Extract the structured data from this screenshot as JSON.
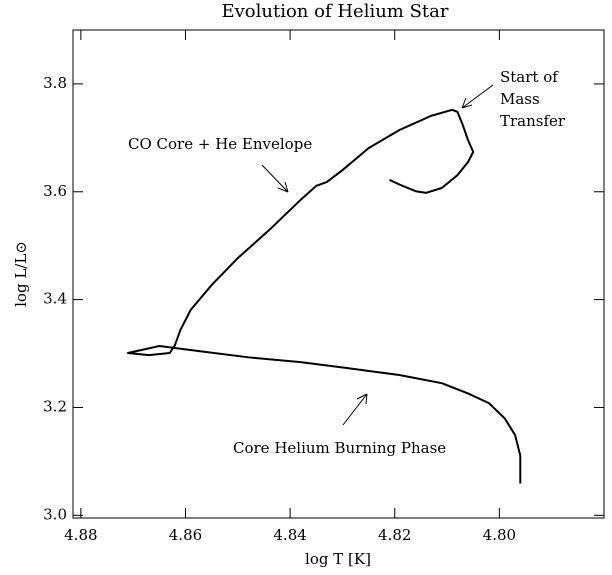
{
  "chart_data": {
    "type": "line",
    "title": "Evolution of Helium Star",
    "x_label": "log T [K]",
    "y_label": "log L/L⊙",
    "annotations": [
      "Start of",
      "Mass",
      "Transfer",
      "CO Core + He Envelope",
      "Core Helium Burning Phase"
    ],
    "x": [
      4.796,
      4.796,
      4.797,
      4.799,
      4.802,
      4.806,
      4.811,
      4.819,
      4.829,
      4.838,
      4.848,
      4.857,
      4.865,
      4.871,
      4.867,
      4.863,
      4.862,
      4.861,
      4.859,
      4.855,
      4.85,
      4.844,
      4.838,
      4.835,
      4.833,
      4.83,
      4.825,
      4.819,
      4.813,
      4.809,
      4.808,
      4.807,
      4.806,
      4.805,
      4.806,
      4.808,
      4.811,
      4.814,
      4.816,
      4.819,
      4.821
    ],
    "series": [
      {
        "color": "#000000",
        "values": [
          3.059,
          3.111,
          3.149,
          3.18,
          3.208,
          3.226,
          3.245,
          3.26,
          3.273,
          3.284,
          3.293,
          3.304,
          3.314,
          3.301,
          3.297,
          3.301,
          3.316,
          3.343,
          3.381,
          3.427,
          3.477,
          3.529,
          3.585,
          3.611,
          3.618,
          3.64,
          3.681,
          3.715,
          3.741,
          3.752,
          3.748,
          3.724,
          3.696,
          3.674,
          3.655,
          3.631,
          3.607,
          3.598,
          3.601,
          3.613,
          3.622
        ]
      }
    ],
    "xlim": [
      4.8815,
      4.78
    ],
    "xticks": [
      {
        "value": 4.88,
        "label": "4.88"
      },
      4.86,
      4.84,
      4.82,
      {
        "value": 4.8,
        "label": "4.80"
      }
    ],
    "ylim": [
      2.995,
      3.9
    ],
    "yticks": [
      {
        "value": 3.0,
        "label": "3.0"
      },
      3.2,
      3.4,
      3.6,
      3.8
    ]
  }
}
